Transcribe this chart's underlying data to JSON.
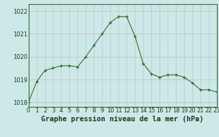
{
  "x": [
    0,
    1,
    2,
    3,
    4,
    5,
    6,
    7,
    8,
    9,
    10,
    11,
    12,
    13,
    14,
    15,
    16,
    17,
    18,
    19,
    20,
    21,
    22,
    23
  ],
  "y": [
    1018.0,
    1018.9,
    1019.4,
    1019.5,
    1019.6,
    1019.6,
    1019.55,
    1020.0,
    1020.5,
    1021.0,
    1021.5,
    1021.75,
    1021.75,
    1020.9,
    1019.7,
    1019.25,
    1019.1,
    1019.2,
    1019.2,
    1019.1,
    1018.85,
    1018.55,
    1018.55,
    1018.45
  ],
  "line_color": "#2d6a2d",
  "marker_color": "#2d6a2d",
  "bg_color": "#cce8e8",
  "grid_color_h": "#c8b8b8",
  "grid_color_v": "#b8c8c8",
  "title": "Graphe pression niveau de la mer (hPa)",
  "xlim": [
    0,
    23
  ],
  "ylim": [
    1017.8,
    1022.3
  ],
  "yticks": [
    1018,
    1019,
    1020,
    1021,
    1022
  ],
  "xtick_labels": [
    "0",
    "1",
    "2",
    "3",
    "4",
    "5",
    "6",
    "7",
    "8",
    "9",
    "10",
    "11",
    "12",
    "13",
    "14",
    "15",
    "16",
    "17",
    "18",
    "19",
    "20",
    "21",
    "22",
    "23"
  ],
  "tick_fontsize": 6.0,
  "title_fontsize": 7.5,
  "axis_color": "#2d6a2d"
}
